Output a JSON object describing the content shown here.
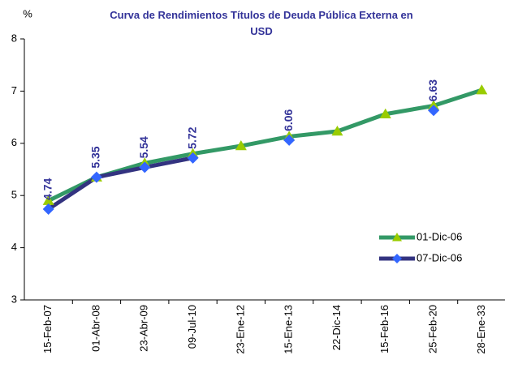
{
  "chart_data": {
    "type": "line",
    "title": "Curva de Rendimientos Títulos de Deuda Pública Externa en USD",
    "y_label": "%",
    "categories": [
      "15-Feb-07",
      "01-Abr-08",
      "23-Abr-09",
      "09-Jul-10",
      "23-Ene-12",
      "15-Ene-13",
      "22-Dic-14",
      "15-Feb-16",
      "25-Feb-20",
      "28-Ene-33"
    ],
    "series": [
      {
        "name": "01-Dic-06",
        "color": "#339966",
        "marker_color": "#99cc00",
        "marker": "triangle",
        "values": [
          4.9,
          5.35,
          5.62,
          5.8,
          5.95,
          6.13,
          6.23,
          6.56,
          6.72,
          7.02
        ]
      },
      {
        "name": "07-Dic-06",
        "color": "#333380",
        "marker_color": "#3366ff",
        "marker": "diamond",
        "data_labels": true,
        "values": [
          4.74,
          5.35,
          5.54,
          5.72,
          null,
          6.06,
          null,
          null,
          6.63,
          null
        ]
      }
    ],
    "ylim": [
      3,
      8
    ],
    "yticks": [
      3,
      4,
      5,
      6,
      7,
      8
    ],
    "legend": "right"
  }
}
